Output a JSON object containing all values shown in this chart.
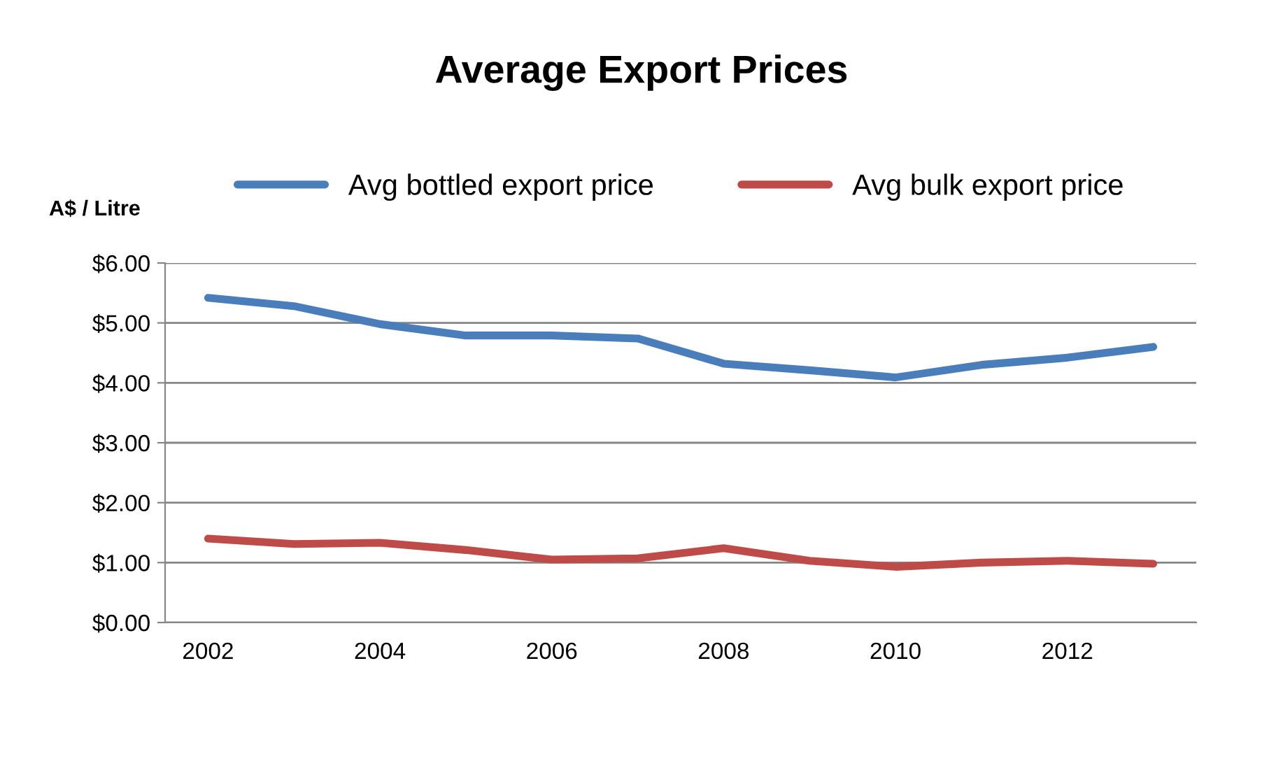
{
  "chart_data": {
    "type": "line",
    "title": "Average Export Prices",
    "ylabel": "A$ / Litre",
    "categories": [
      "2002",
      null,
      "2004",
      null,
      "2006",
      null,
      "2008",
      null,
      "2010",
      null,
      "2012",
      null
    ],
    "series": [
      {
        "name": "Avg bottled export price",
        "color": "#4a7ebb",
        "values": [
          5.42,
          5.28,
          4.98,
          4.79,
          4.79,
          4.74,
          4.32,
          4.21,
          4.09,
          4.3,
          4.42,
          4.6
        ]
      },
      {
        "name": "Avg bulk export price",
        "color": "#be4b48",
        "values": [
          1.4,
          1.31,
          1.33,
          1.21,
          1.05,
          1.07,
          1.24,
          1.03,
          0.93,
          1.0,
          1.03,
          0.98
        ]
      }
    ],
    "ylim": [
      0,
      6
    ],
    "yticks": [
      {
        "value": 0,
        "label": "$0.00"
      },
      {
        "value": 1,
        "label": "$1.00"
      },
      {
        "value": 2,
        "label": "$2.00"
      },
      {
        "value": 3,
        "label": "$3.00"
      },
      {
        "value": 4,
        "label": "$4.00"
      },
      {
        "value": 5,
        "label": "$5.00"
      },
      {
        "value": 6,
        "label": "$6.00"
      }
    ],
    "grid": "y",
    "legend": "top",
    "marker": "none",
    "line_style": "solid"
  }
}
